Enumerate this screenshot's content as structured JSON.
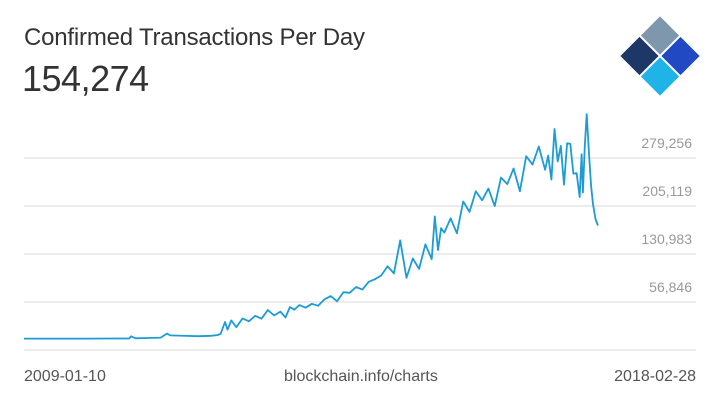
{
  "header": {
    "title": "Confirmed Transactions Per Day",
    "current_value": "154,274"
  },
  "footer": {
    "start_date": "2009-01-10",
    "source": "blockchain.info/charts",
    "end_date": "2018-02-28"
  },
  "colors": {
    "line": "#1c9bd6",
    "grid": "#d9d9d9",
    "tick_text": "#999999",
    "logo_dark": "#1d3866",
    "logo_grey": "#7f97ad",
    "logo_blue": "#2149c4",
    "logo_cyan": "#1fb3e8",
    "logo_light": "#a6d7f2"
  },
  "logo": {
    "icon": "blockchain-logo-icon"
  },
  "chart_data": {
    "type": "line",
    "title": "Confirmed Transactions Per Day",
    "xlabel": "",
    "ylabel": "",
    "x_start": "2009-01-10",
    "x_end": "2018-02-28",
    "ylim": [
      -17290,
      353393
    ],
    "y_ticks": [
      {
        "value": 56846,
        "label": "56,846"
      },
      {
        "value": 130983,
        "label": "130,983"
      },
      {
        "value": 205119,
        "label": "205,119"
      },
      {
        "value": 279256,
        "label": "279,256"
      }
    ],
    "grid": true,
    "series": [
      {
        "name": "Confirmed Transactions Per Day",
        "x_years": [
          2009.03,
          2009.5,
          2010.0,
          2010.5,
          2010.7,
          2010.73,
          2010.8,
          2011.0,
          2011.2,
          2011.3,
          2011.35,
          2011.6,
          2011.8,
          2012.0,
          2012.1,
          2012.15,
          2012.22,
          2012.26,
          2012.32,
          2012.4,
          2012.5,
          2012.6,
          2012.7,
          2012.8,
          2012.9,
          2013.0,
          2013.1,
          2013.18,
          2013.25,
          2013.32,
          2013.4,
          2013.5,
          2013.6,
          2013.7,
          2013.8,
          2013.9,
          2014.0,
          2014.1,
          2014.2,
          2014.3,
          2014.4,
          2014.5,
          2014.6,
          2014.7,
          2014.8,
          2014.9,
          2015.0,
          2015.1,
          2015.2,
          2015.3,
          2015.4,
          2015.5,
          2015.55,
          2015.6,
          2015.65,
          2015.7,
          2015.8,
          2015.9,
          2016.0,
          2016.1,
          2016.2,
          2016.3,
          2016.4,
          2016.5,
          2016.6,
          2016.7,
          2016.8,
          2016.9,
          2017.0,
          2017.1,
          2017.2,
          2017.3,
          2017.35,
          2017.4,
          2017.45,
          2017.5,
          2017.55,
          2017.6,
          2017.65,
          2017.7,
          2017.75,
          2017.8,
          2017.85,
          2017.88,
          2017.9,
          2017.93,
          2017.96,
          2018.0,
          2018.03,
          2018.06,
          2018.1,
          2018.14
        ],
        "values": [
          300,
          300,
          300,
          400,
          400,
          3800,
          800,
          1200,
          1800,
          8200,
          5200,
          4500,
          4000,
          4700,
          5800,
          7500,
          26000,
          14000,
          28500,
          18000,
          31500,
          27000,
          35500,
          31000,
          44500,
          36000,
          42000,
          33000,
          49000,
          45000,
          52000,
          48000,
          54000,
          51000,
          61000,
          66000,
          58000,
          72000,
          71000,
          80000,
          76000,
          88000,
          92000,
          98000,
          112000,
          101000,
          152000,
          94000,
          124000,
          108000,
          146000,
          123000,
          189000,
          137000,
          171000,
          164000,
          186000,
          163000,
          212000,
          196000,
          228000,
          214000,
          232000,
          205000,
          249000,
          239000,
          263000,
          228000,
          282000,
          269000,
          297000,
          261000,
          283000,
          246000,
          324000,
          274000,
          298000,
          238000,
          302000,
          301000,
          255000,
          256000,
          219000,
          285000,
          226000,
          298000,
          347000,
          281000,
          236000,
          208000,
          185000,
          175000
        ]
      }
    ]
  }
}
